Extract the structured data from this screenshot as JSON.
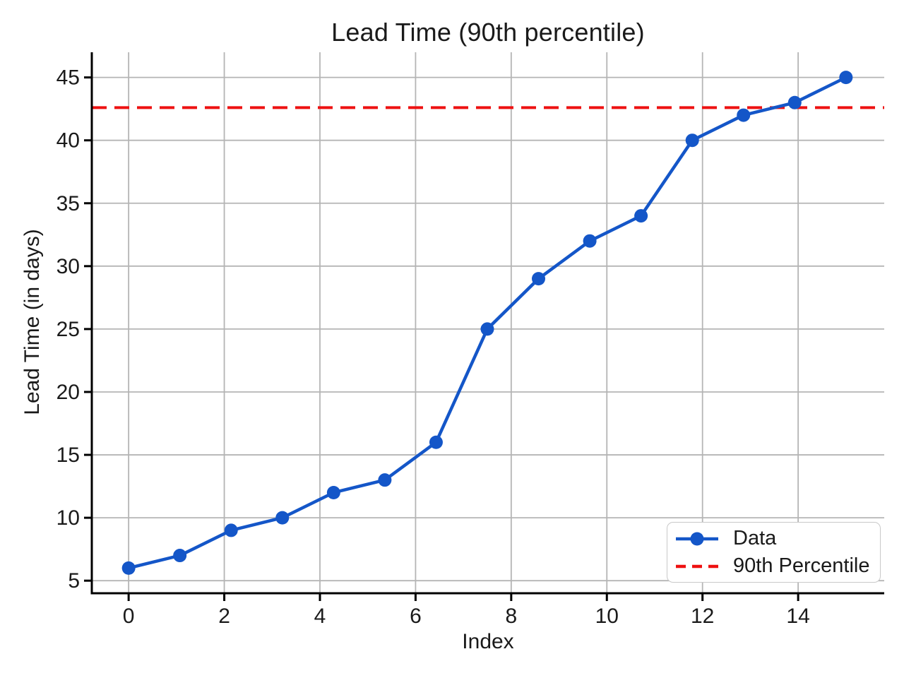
{
  "figure": {
    "title": "Lead Time (90th percentile)",
    "xlabel": "Index",
    "ylabel": "Lead Time (in days)"
  },
  "chart_data": {
    "type": "line",
    "title": "Lead Time (90th percentile)",
    "xlabel": "Index",
    "ylabel": "Lead Time (in days)",
    "series_label": "Data",
    "x": [
      0,
      1.071,
      2.143,
      3.214,
      4.286,
      5.357,
      6.429,
      7.5,
      8.571,
      9.643,
      10.714,
      11.786,
      12.857,
      13.929,
      15
    ],
    "y": [
      6,
      7,
      9,
      10,
      12,
      13,
      16,
      25,
      29,
      32,
      34,
      40,
      42,
      43,
      45
    ],
    "percentile_line": {
      "label": "90th Percentile",
      "value": 42.6
    },
    "xticks": [
      0,
      2,
      4,
      6,
      8,
      10,
      12,
      14
    ],
    "yticks": [
      5,
      10,
      15,
      20,
      25,
      30,
      35,
      40,
      45
    ],
    "xlim": [
      -0.77,
      15.8
    ],
    "ylim": [
      4,
      47
    ],
    "grid": true,
    "legend_position": "lower right",
    "colors": {
      "line": "#1456c8",
      "percentile": "#ee1111",
      "grid": "#b5b5b5",
      "spine": "#000000",
      "text": "#1a1a1a",
      "background": "#ffffff"
    }
  }
}
